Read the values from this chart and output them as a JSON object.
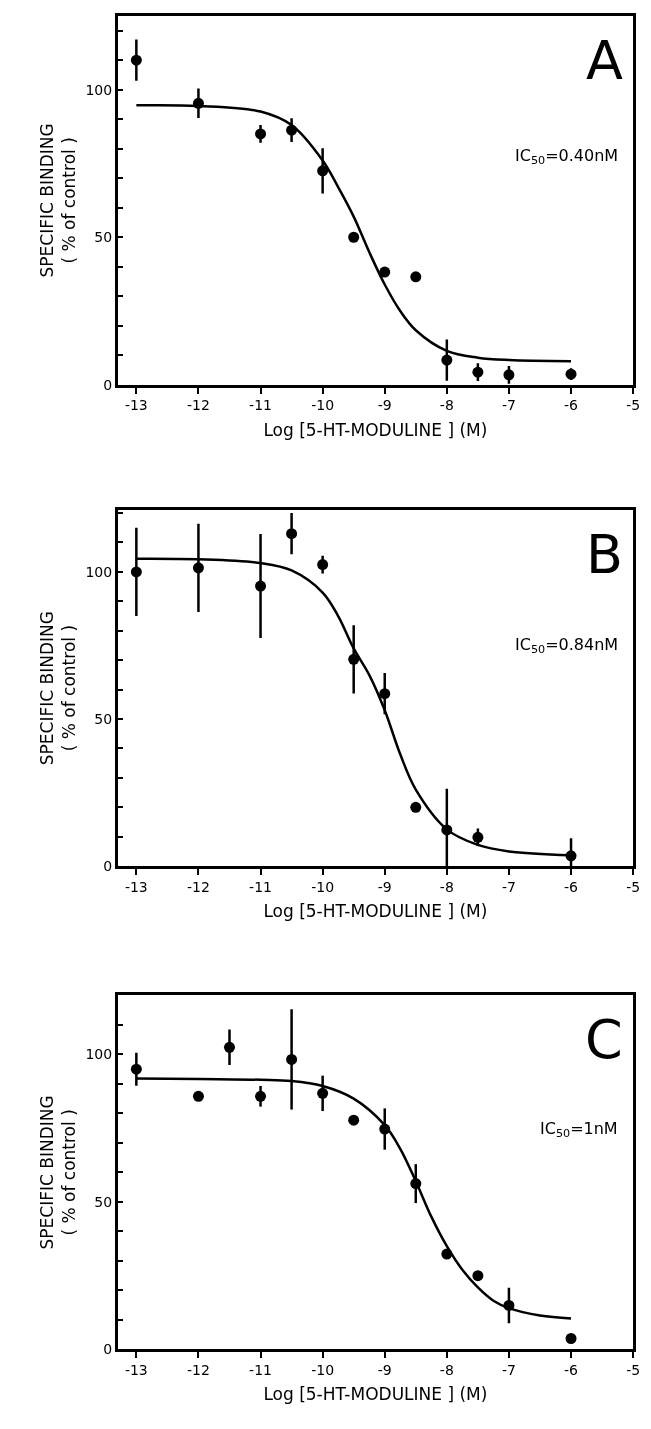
{
  "chart_data": [
    {
      "type": "scatter",
      "title": "A",
      "xlabel": "Log [5-HT-MODULINE ] (M)",
      "ylabel": "SPECIFIC BINDING\n( % of control )",
      "annotations": [
        "IC$_{50}$=0.40nM"
      ],
      "xlim": [
        -13.3,
        -5
      ],
      "xticks": [
        -13,
        -12,
        -11,
        -10,
        -9,
        -8,
        -7,
        -6,
        -5
      ],
      "ylim": [
        0,
        125
      ],
      "yticks": [
        0,
        {
          "value": 10,
          "label": null
        },
        {
          "value": 20,
          "label": null
        },
        {
          "value": 30,
          "label": null
        },
        {
          "value": 40,
          "label": null
        },
        50,
        {
          "value": 60,
          "label": null
        },
        {
          "value": 70,
          "label": null
        },
        {
          "value": 80,
          "label": null
        },
        {
          "value": 90,
          "label": null
        },
        100,
        {
          "value": 110,
          "label": null
        },
        {
          "value": 120,
          "label": null
        }
      ],
      "series": [
        {
          "marker": "circle",
          "color": "#000000",
          "x": [
            -13,
            -12,
            -11,
            -10.5,
            -10,
            -9.5,
            -9,
            -8.5,
            -8,
            -7.5,
            -7,
            -6
          ],
          "values": [
            110,
            95.4,
            85,
            86.3,
            72.5,
            50,
            38.2,
            36.6,
            8.4,
            4.3,
            3.4,
            3.6
          ],
          "errors": [
            7,
            5,
            3,
            4,
            7.7,
            null,
            null,
            null,
            7,
            3,
            3,
            2
          ]
        },
        {
          "type": "line",
          "color": "#000000",
          "line_style": "solid",
          "x": [
            -13,
            -12,
            -11,
            -10.5,
            -10,
            -9.75,
            -9.5,
            -9.25,
            -9,
            -8.75,
            -8.5,
            -8,
            -7.5,
            -7,
            -6
          ],
          "values": [
            94.7,
            94.5,
            92.6,
            88,
            76,
            67,
            57,
            45,
            34,
            25,
            18.5,
            11.5,
            9.2,
            8.4,
            8
          ]
        }
      ]
    },
    {
      "type": "scatter",
      "title": "B",
      "xlabel": "Log [5-HT-MODULINE ] (M)",
      "ylabel": "SPECIFIC BINDING\n( % of control )",
      "annotations": [
        "IC$_{50}$=0.84nM"
      ],
      "xlim": [
        -13.3,
        -5
      ],
      "xticks": [
        -13,
        -12,
        -11,
        -10,
        -9,
        -8,
        -7,
        -6,
        -5
      ],
      "ylim": [
        0,
        121
      ],
      "yticks": [
        0,
        {
          "value": 10,
          "label": null
        },
        {
          "value": 20,
          "label": null
        },
        {
          "value": 30,
          "label": null
        },
        {
          "value": 40,
          "label": null
        },
        50,
        {
          "value": 60,
          "label": null
        },
        {
          "value": 70,
          "label": null
        },
        {
          "value": 80,
          "label": null
        },
        {
          "value": 90,
          "label": null
        },
        100,
        {
          "value": 110,
          "label": null
        },
        {
          "value": 120,
          "label": null
        }
      ],
      "series": [
        {
          "marker": "circle",
          "color": "#000000",
          "x": [
            -13,
            -12,
            -11,
            -10.5,
            -10,
            -9.5,
            -9,
            -8.5,
            -8,
            -7.5,
            -6
          ],
          "values": [
            100,
            101.4,
            95.2,
            113,
            102.5,
            70.3,
            58.6,
            20,
            12.3,
            9.8,
            3.5
          ],
          "errors": [
            15,
            15,
            17.7,
            7,
            3,
            11.6,
            7,
            null,
            [
              0,
              26.3
            ],
            3,
            [
              0,
              9.5
            ]
          ]
        },
        {
          "type": "line",
          "color": "#000000",
          "line_style": "solid",
          "x": [
            -13,
            -12,
            -11,
            -10.5,
            -10,
            -9.75,
            -9.5,
            -9.25,
            -9,
            -8.75,
            -8.5,
            -8,
            -7.5,
            -7,
            -6
          ],
          "values": [
            104.5,
            104.3,
            103,
            100.5,
            93,
            85,
            74,
            65,
            53,
            38,
            26,
            12.5,
            7.2,
            5,
            3.7
          ]
        }
      ]
    },
    {
      "type": "scatter",
      "title": "C",
      "xlabel": "Log [5-HT-MODULINE ] (M)",
      "ylabel": "SPECIFIC BINDING\n( % of control )",
      "annotations": [
        "IC$_{50}$=1nM"
      ],
      "xlim": [
        -13.3,
        -5
      ],
      "xticks": [
        -13,
        -12,
        -11,
        -10,
        -9,
        -8,
        -7,
        -6,
        -5
      ],
      "ylim": [
        0,
        120
      ],
      "yticks": [
        0,
        {
          "value": 10,
          "label": null
        },
        {
          "value": 20,
          "label": null
        },
        {
          "value": 30,
          "label": null
        },
        {
          "value": 40,
          "label": null
        },
        50,
        {
          "value": 60,
          "label": null
        },
        {
          "value": 70,
          "label": null
        },
        {
          "value": 80,
          "label": null
        },
        {
          "value": 90,
          "label": null
        },
        100,
        {
          "value": 110,
          "label": null
        }
      ],
      "series": [
        {
          "marker": "circle",
          "color": "#000000",
          "x": [
            -13,
            -12,
            -11.5,
            -11,
            -10.5,
            -10,
            -9.5,
            -9,
            -8.5,
            -8,
            -7.5,
            -7,
            -6
          ],
          "values": [
            95,
            85.8,
            102.4,
            85.8,
            98.3,
            86.8,
            77.7,
            74.7,
            56.2,
            32.3,
            25,
            14.9,
            3.7
          ],
          "errors": [
            5.6,
            null,
            6,
            3.5,
            17,
            6,
            null,
            7,
            6.6,
            null,
            null,
            6,
            null
          ]
        },
        {
          "type": "line",
          "color": "#000000",
          "line_style": "solid",
          "x": [
            -13,
            -12,
            -11,
            -10.5,
            -10,
            -9.5,
            -9,
            -8.75,
            -8.5,
            -8.25,
            -8,
            -7.75,
            -7.5,
            -7.25,
            -7,
            -6.5,
            -6
          ],
          "values": [
            91.8,
            91.7,
            91.4,
            91,
            89.3,
            85,
            76,
            68,
            57,
            45,
            35,
            27,
            21,
            16.5,
            14,
            11.5,
            10.5
          ]
        }
      ]
    }
  ]
}
